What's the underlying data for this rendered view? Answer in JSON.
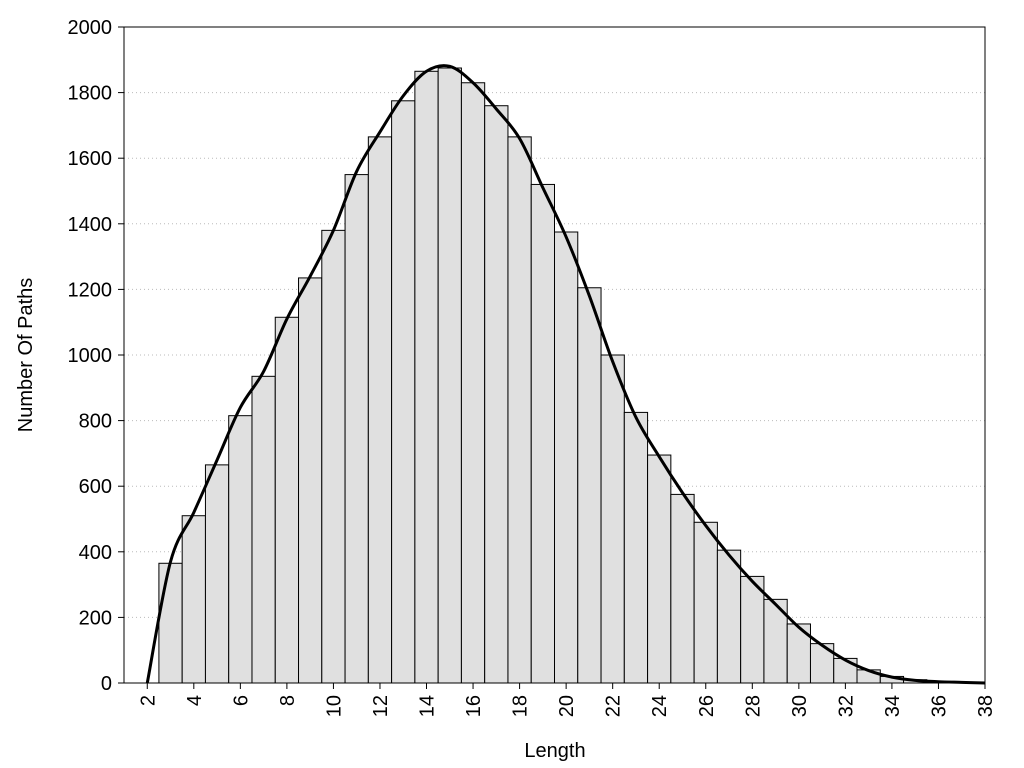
{
  "chart_data": {
    "type": "histogram",
    "x_label": "Length",
    "y_label": "Number Of Paths",
    "bins": [
      2.5,
      3.5,
      4.5,
      5.5,
      6.5,
      7.5,
      8.5,
      9.5,
      10.5,
      11.5,
      12.5,
      13.5,
      14.5,
      15.5,
      16.5,
      17.5,
      18.5,
      19.5,
      20.5,
      21.5,
      22.5,
      23.5,
      24.5,
      25.5,
      26.5,
      27.5,
      28.5,
      29.5,
      30.5,
      31.5,
      32.5,
      33.5,
      34.5,
      35.5,
      36.5,
      37.5
    ],
    "values": [
      365,
      510,
      665,
      815,
      935,
      1115,
      1235,
      1380,
      1550,
      1665,
      1775,
      1865,
      1875,
      1830,
      1760,
      1665,
      1520,
      1375,
      1205,
      1000,
      825,
      695,
      575,
      490,
      405,
      325,
      255,
      180,
      120,
      75,
      40,
      20,
      10,
      5,
      3
    ],
    "color": "#e0e0e0",
    "line": {
      "color": "#000000",
      "x": [
        2,
        3,
        4,
        5,
        6,
        7,
        8,
        9,
        10,
        11,
        12,
        13,
        14,
        15,
        16,
        17,
        18,
        19,
        20,
        21,
        22,
        23,
        24,
        25,
        26,
        27,
        28,
        29,
        30,
        31,
        32,
        33,
        34,
        35,
        36,
        37,
        38
      ],
      "values": [
        0,
        370,
        520,
        680,
        840,
        950,
        1110,
        1240,
        1380,
        1560,
        1680,
        1790,
        1865,
        1880,
        1830,
        1750,
        1660,
        1510,
        1360,
        1180,
        980,
        810,
        690,
        580,
        480,
        390,
        310,
        240,
        170,
        115,
        70,
        38,
        18,
        8,
        4,
        2,
        0
      ]
    },
    "xlim": [
      1,
      38
    ],
    "ylim": [
      0,
      2000
    ],
    "xticks": [
      2,
      4,
      6,
      8,
      10,
      12,
      14,
      16,
      18,
      20,
      22,
      24,
      26,
      28,
      30,
      32,
      34,
      36,
      38
    ],
    "yticks": [
      0,
      200,
      400,
      600,
      800,
      1000,
      1200,
      1400,
      1600,
      1800,
      2000
    ],
    "grid": true
  }
}
